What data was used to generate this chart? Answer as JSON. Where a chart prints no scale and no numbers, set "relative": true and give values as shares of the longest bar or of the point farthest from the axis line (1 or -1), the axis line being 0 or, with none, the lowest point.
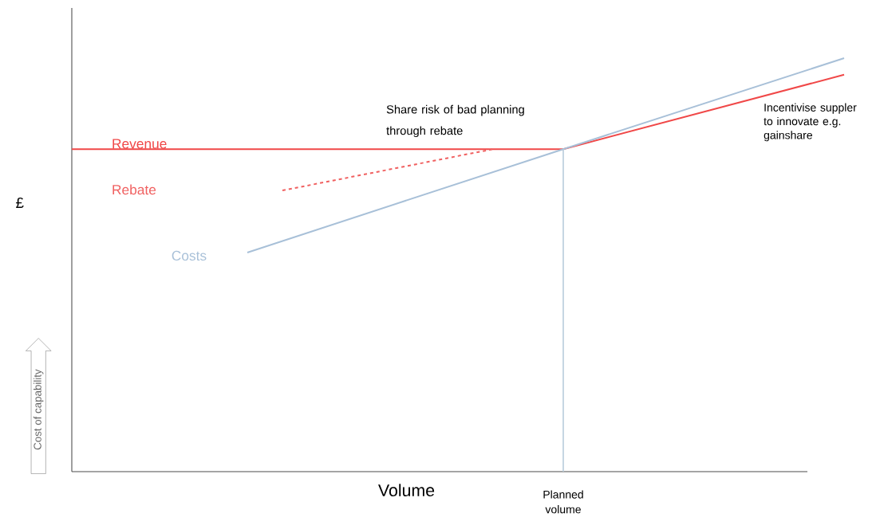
{
  "chart_data": {
    "type": "line",
    "relative": true,
    "xlabel": "Volume",
    "ylabel": "£",
    "categories": [
      null,
      null,
      null,
      null,
      null,
      null,
      null,
      null,
      null,
      null,
      null,
      null,
      null,
      null,
      null,
      null,
      null,
      null,
      null,
      null,
      null,
      null,
      null,
      null,
      null,
      null,
      null,
      null,
      null,
      null,
      null,
      null,
      null,
      null,
      null,
      null,
      null,
      null,
      null,
      null,
      null,
      null,
      null,
      null,
      null
    ],
    "series": [
      {
        "name": "Revenue",
        "color": "#f04848",
        "values": [
          0.78,
          null,
          null,
          null,
          null,
          null,
          null,
          null,
          null,
          null,
          null,
          null,
          null,
          null,
          null,
          null,
          null,
          null,
          null,
          null,
          null,
          null,
          null,
          null,
          null,
          null,
          null,
          null,
          0.78,
          null,
          null,
          null,
          null,
          null,
          null,
          null,
          null,
          null,
          null,
          null,
          null,
          null,
          null,
          null,
          0.96
        ]
      },
      {
        "name": "Rebate",
        "color": "#f06060",
        "line_style": "dashed",
        "values": [
          null,
          null,
          null,
          null,
          null,
          null,
          null,
          null,
          null,
          null,
          null,
          null,
          0.68,
          null,
          null,
          null,
          null,
          null,
          null,
          null,
          null,
          null,
          null,
          null,
          0.78,
          null,
          null,
          null,
          null,
          null,
          null,
          null,
          null,
          null,
          null,
          null,
          null,
          null,
          null,
          null,
          null,
          null,
          null,
          null,
          null
        ]
      },
      {
        "name": "Costs",
        "color": "#a8c0d8",
        "values": [
          null,
          null,
          null,
          null,
          null,
          null,
          null,
          null,
          null,
          null,
          0.53,
          null,
          null,
          null,
          null,
          null,
          null,
          null,
          null,
          null,
          null,
          null,
          null,
          null,
          null,
          null,
          null,
          null,
          0.78,
          null,
          null,
          null,
          null,
          null,
          null,
          null,
          null,
          null,
          null,
          null,
          null,
          null,
          null,
          null,
          1.0
        ]
      }
    ],
    "annotations": [
      "Share risk of bad planning through rebate",
      "Incentivise suppler to innovate e.g. gainshare",
      "Cost of capability",
      "Planned volume"
    ]
  }
}
